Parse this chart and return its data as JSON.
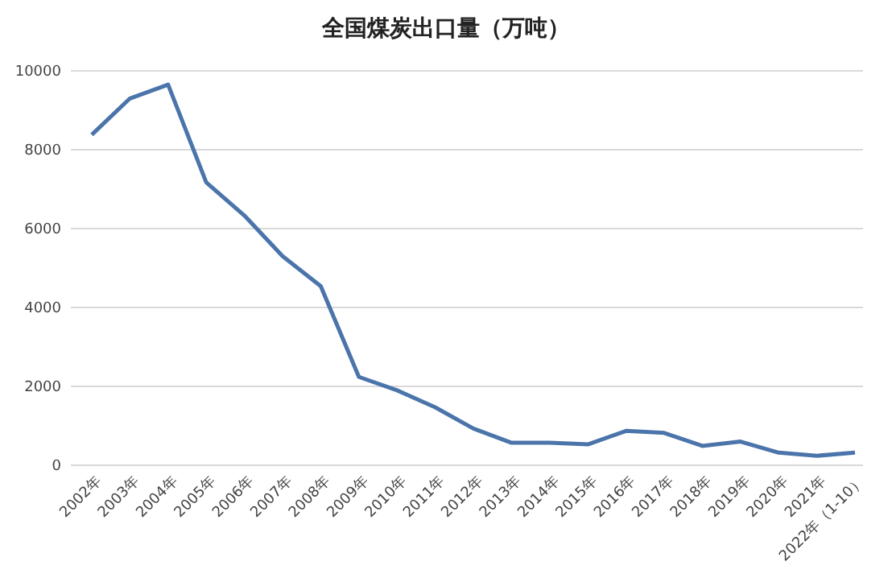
{
  "chart_data": {
    "type": "line",
    "title": "全国煤炭出口量（万吨）",
    "categories": [
      "2002年",
      "2003年",
      "2004年",
      "2005年",
      "2006年",
      "2007年",
      "2008年",
      "2009年",
      "2010年",
      "2011年",
      "2012年",
      "2013年",
      "2014年",
      "2015年",
      "2016年",
      "2017年",
      "2018年",
      "2019年",
      "2020年",
      "2021年",
      "2022年（1-10）"
    ],
    "series": [
      {
        "color": "#4a74aa",
        "values": [
          8380,
          9300,
          9650,
          7170,
          6330,
          5300,
          4540,
          2240,
          1900,
          1470,
          930,
          570,
          570,
          530,
          870,
          820,
          490,
          600,
          320,
          240,
          320
        ]
      }
    ],
    "ylim": [
      0,
      10000
    ],
    "yticks": [
      0,
      2000,
      4000,
      6000,
      8000,
      10000
    ],
    "grid": "y",
    "marker": "none",
    "line_style": "solid"
  }
}
